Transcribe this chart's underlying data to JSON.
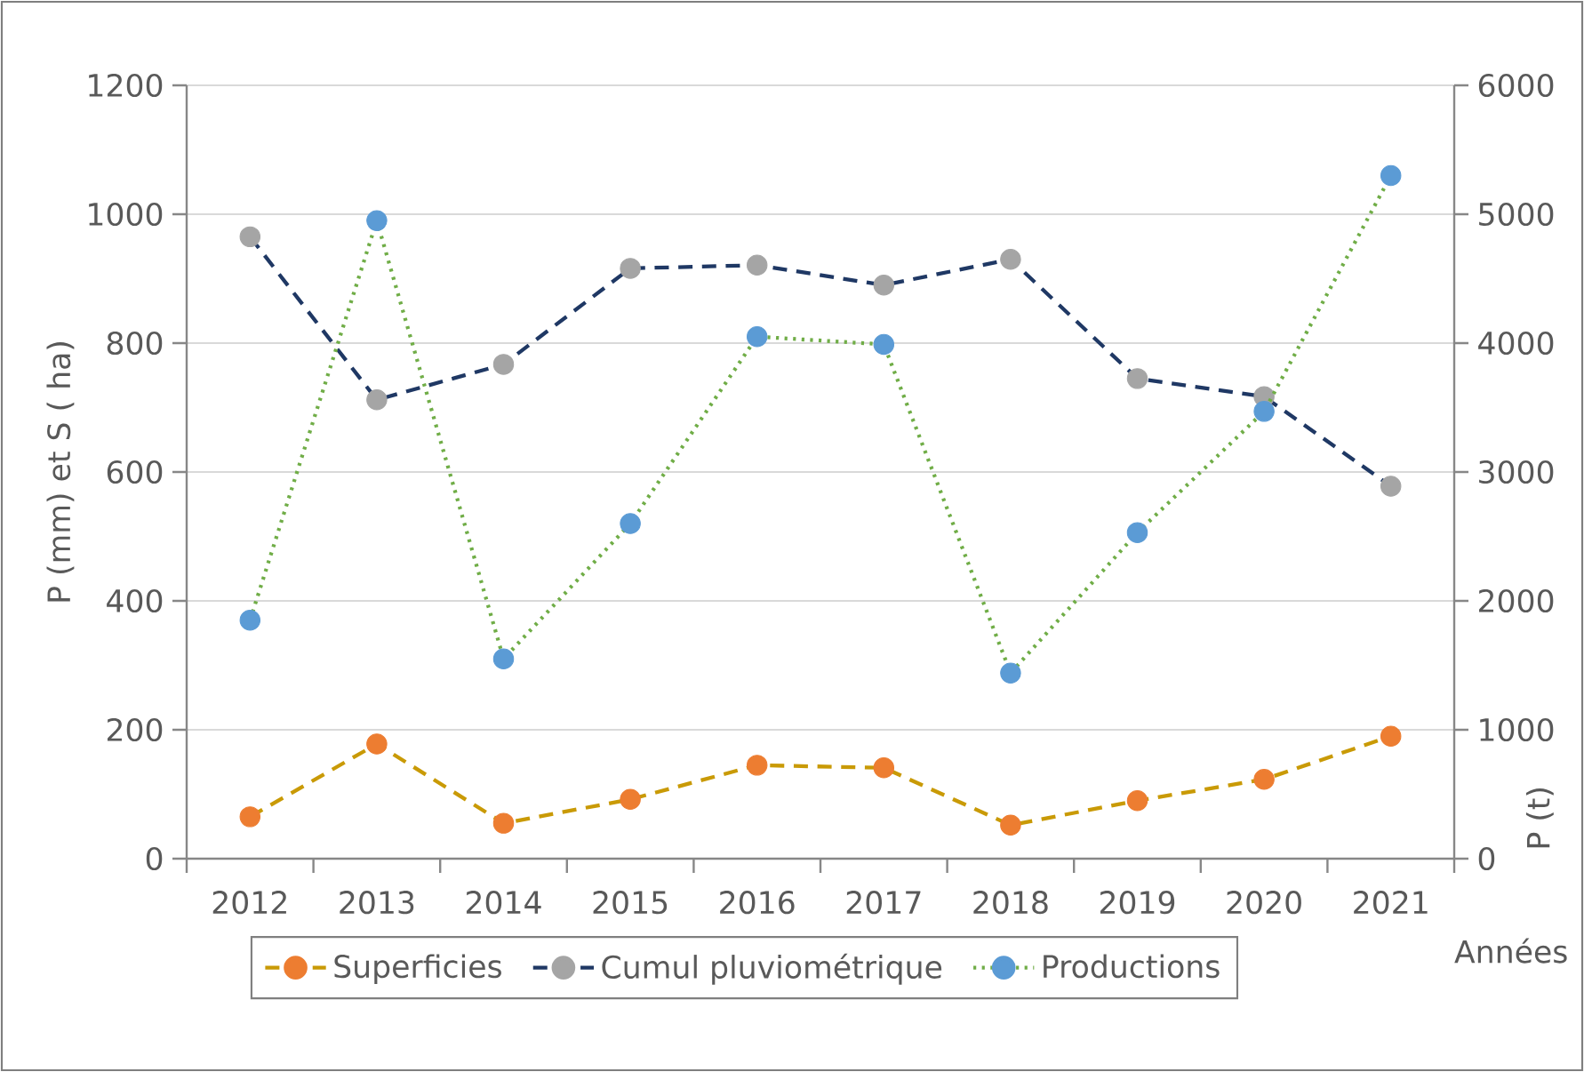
{
  "chart_data": {
    "type": "line",
    "categories": [
      "2012",
      "2013",
      "2014",
      "2015",
      "2016",
      "2017",
      "2018",
      "2019",
      "2020",
      "2021"
    ],
    "xlabel": "Années",
    "ylabel": "P (mm) et S ( ha)",
    "y2label": "P (t)",
    "ylim": [
      0,
      1200
    ],
    "yticks": [
      0,
      200,
      400,
      600,
      800,
      1000,
      1200
    ],
    "y2lim": [
      0,
      6000
    ],
    "y2ticks": [
      0,
      1000,
      2000,
      3000,
      4000,
      5000,
      6000
    ],
    "grid": "y",
    "legend": "bottom",
    "marker": "circle",
    "series": [
      {
        "name": "Superficies",
        "color": "#c99a06",
        "colors": [
          "#ed7d31",
          "#ed7d31",
          "#ed7d31",
          "#ed7d31",
          "#ed7d31",
          "#ed7d31",
          "#ed7d31",
          "#ed7d31",
          "#ed7d31",
          "#ed7d31"
        ],
        "line_style": "dashed",
        "axis": "y",
        "values": [
          65,
          178,
          55,
          92,
          145,
          141,
          52,
          90,
          123,
          190
        ]
      },
      {
        "name": "Cumul pluviométrique",
        "color": "#1f3864",
        "colors": [
          "#a5a5a5",
          "#a5a5a5",
          "#a5a5a5",
          "#a5a5a5",
          "#a5a5a5",
          "#a5a5a5",
          "#a5a5a5",
          "#a5a5a5",
          "#a5a5a5",
          "#a5a5a5"
        ],
        "line_style": "dashed",
        "axis": "y",
        "values": [
          965,
          712,
          767,
          916,
          921,
          890,
          930,
          745,
          717,
          578
        ]
      },
      {
        "name": "Productions",
        "color": "#70ad47",
        "colors": [
          "#5b9bd5",
          "#5b9bd5",
          "#5b9bd5",
          "#5b9bd5",
          "#5b9bd5",
          "#5b9bd5",
          "#5b9bd5",
          "#5b9bd5",
          "#5b9bd5",
          "#5b9bd5"
        ],
        "line_style": "dotted",
        "axis": "y2",
        "values": [
          1850,
          4950,
          1550,
          2600,
          4050,
          3990,
          1440,
          2530,
          3470,
          5300
        ]
      }
    ]
  }
}
